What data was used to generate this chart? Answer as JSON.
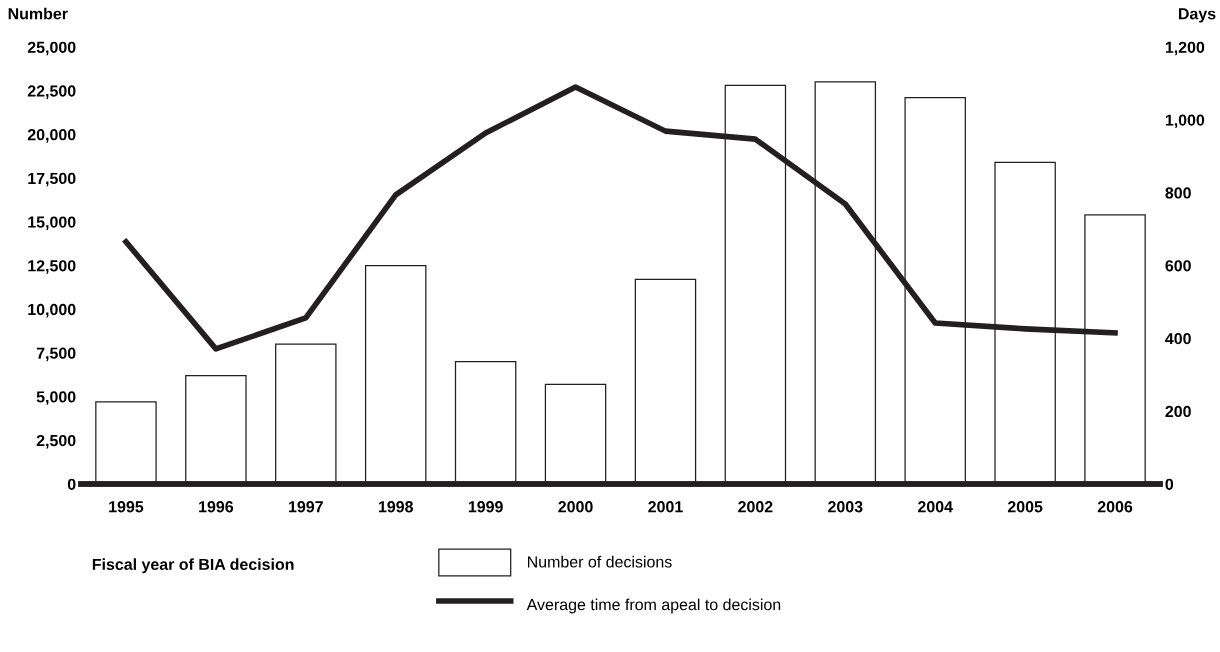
{
  "chart_data": {
    "type": "bar",
    "categories": [
      "1995",
      "1996",
      "1997",
      "1998",
      "1999",
      "2000",
      "2001",
      "2002",
      "2003",
      "2004",
      "2005",
      "2006"
    ],
    "series": [
      {
        "name": "Number of decisions",
        "color": "#ffffff",
        "values": [
          4700,
          6200,
          8000,
          12500,
          7000,
          5700,
          11700,
          22800,
          23000,
          22100,
          18400,
          15400
        ]
      },
      {
        "name": "Average time from apeal to decision",
        "type": "line",
        "axis": "y2",
        "color": "#231f20",
        "values": [
          665,
          371,
          456,
          794,
          964,
          1090,
          969,
          947,
          769,
          442,
          426,
          415
        ]
      }
    ],
    "ylabel": "Number",
    "y2label": "Days",
    "xlabel": "Fiscal year of BIA decision",
    "ylim": [
      0,
      25000
    ],
    "yticks": [
      {
        "value": 0,
        "label": "0"
      },
      {
        "value": 2500,
        "label": "2,500"
      },
      {
        "value": 5000,
        "label": "5,000"
      },
      {
        "value": 7500,
        "label": "7,500"
      },
      {
        "value": 10000,
        "label": "10,000"
      },
      {
        "value": 12500,
        "label": "12,500"
      },
      {
        "value": 15000,
        "label": "15,000"
      },
      {
        "value": 17500,
        "label": "17,500"
      },
      {
        "value": 20000,
        "label": "20,000"
      },
      {
        "value": 22500,
        "label": "22,500"
      },
      {
        "value": 25000,
        "label": "25,000"
      }
    ],
    "y2lim": [
      0,
      1200
    ],
    "y2ticks": [
      {
        "value": 0,
        "label": "0"
      },
      {
        "value": 200,
        "label": "200"
      },
      {
        "value": 400,
        "label": "400"
      },
      {
        "value": 600,
        "label": "600"
      },
      {
        "value": 800,
        "label": "800"
      },
      {
        "value": 1000,
        "label": "1,000"
      },
      {
        "value": 1200,
        "label": "1,200"
      }
    ],
    "grid": false,
    "legend": "bottom",
    "marker": "none",
    "line_style": "solid"
  }
}
